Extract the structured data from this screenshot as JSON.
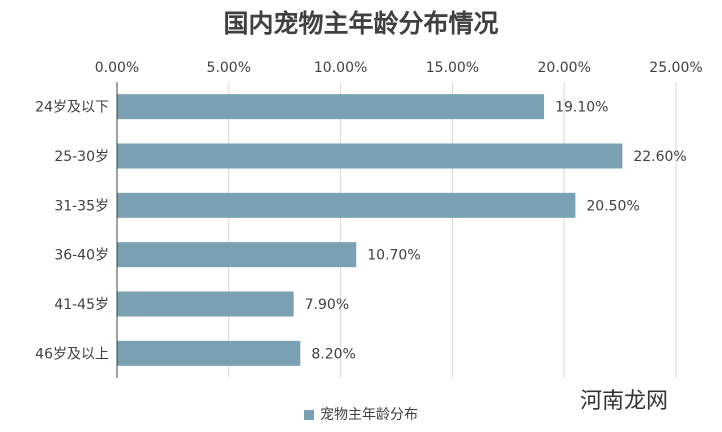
{
  "chart_data": {
    "type": "bar",
    "orientation": "horizontal",
    "title": "国内宠物主年龄分布情况",
    "categories": [
      "24岁及以下",
      "25-30岁",
      "31-35岁",
      "36-40岁",
      "41-45岁",
      "46岁及以上"
    ],
    "series": [
      {
        "name": "宠物主年龄分布",
        "values": [
          19.1,
          22.6,
          20.5,
          10.7,
          7.9,
          8.2
        ],
        "color": "#7aa1b3"
      }
    ],
    "data_labels": [
      "19.10%",
      "22.60%",
      "20.50%",
      "10.70%",
      "7.90%",
      "8.20%"
    ],
    "x_ticks": [
      "0.00%",
      "5.00%",
      "10.00%",
      "15.00%",
      "20.00%",
      "25.00%"
    ],
    "xlim": [
      0,
      25
    ],
    "x_axis_position": "top",
    "grid": true,
    "legend_position": "bottom"
  },
  "watermark": "河南龙网"
}
